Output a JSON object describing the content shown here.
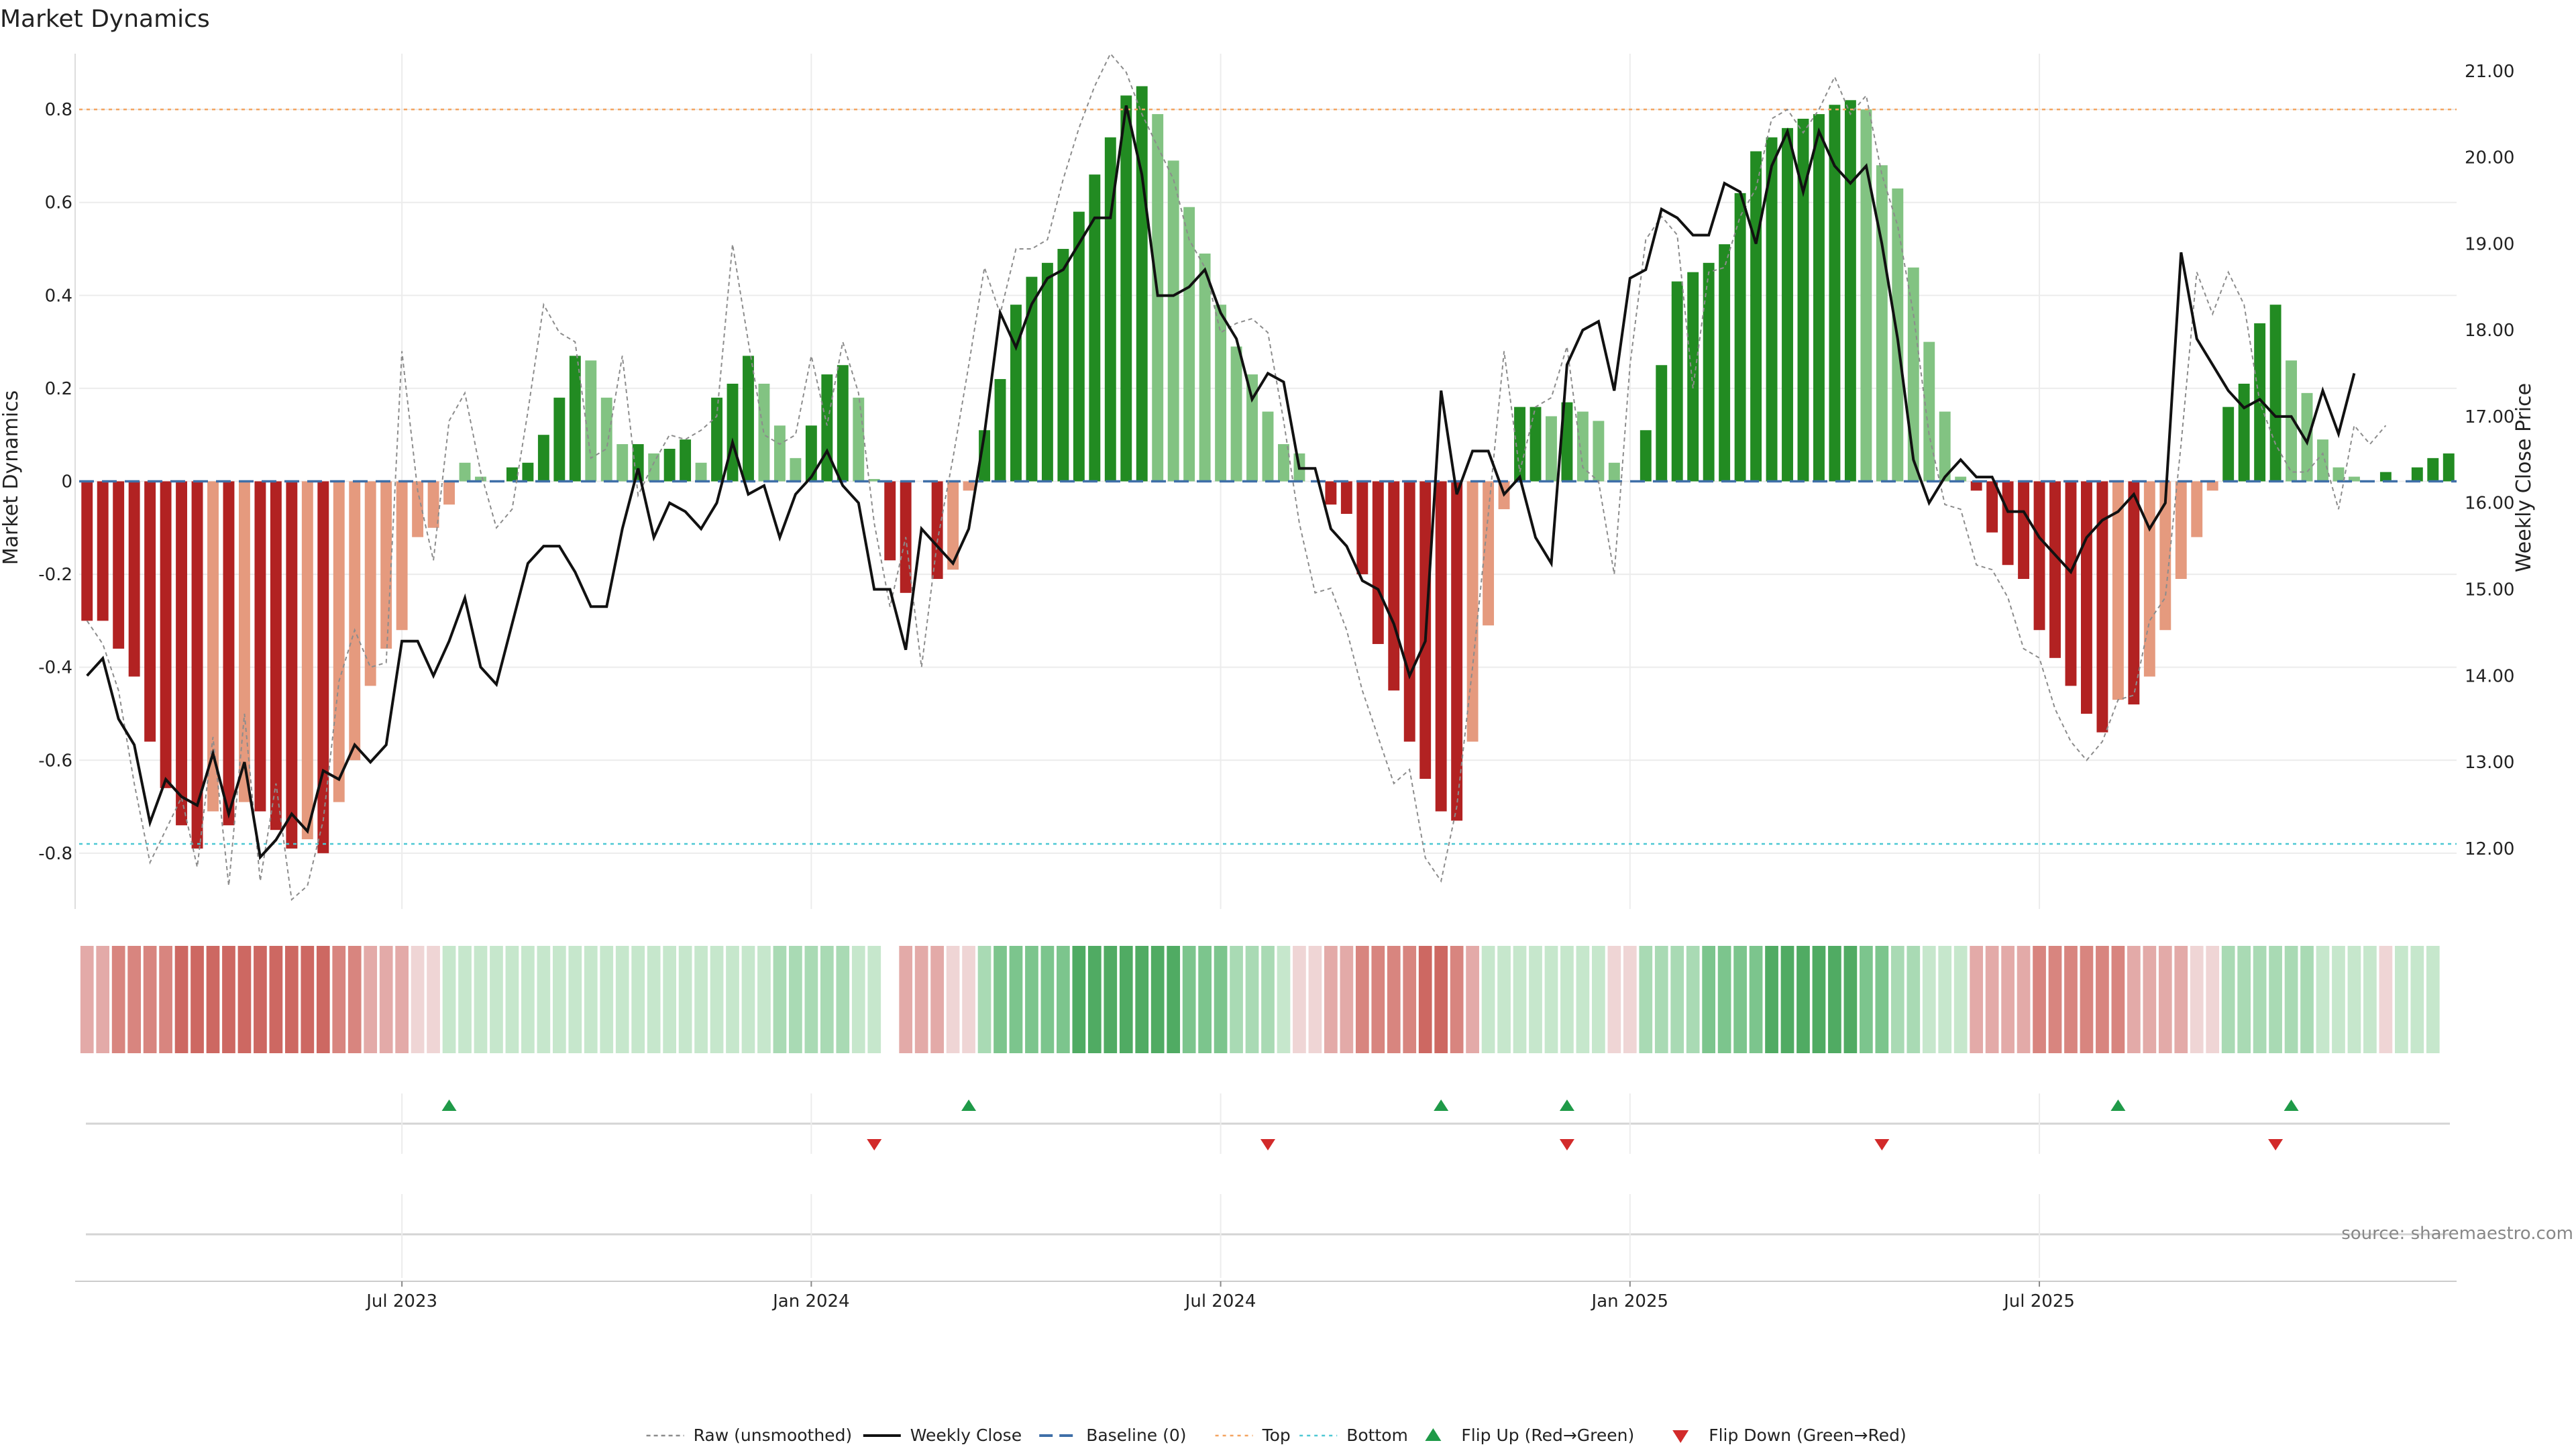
{
  "chart_data": {
    "type": "bar",
    "title": "Market Dynamics",
    "ylabel_left": "Market Dynamics",
    "ylabel_right": "Weekly Close Price",
    "source": "source: sharemaestro.com",
    "ylim_left": [
      -0.92,
      0.92
    ],
    "ylim_right": [
      11.3,
      21.2
    ],
    "y_ticks_left": [
      -0.8,
      -0.6,
      -0.4,
      -0.2,
      0,
      0.2,
      0.4,
      0.6,
      0.8
    ],
    "y_tick_labels_left": [
      "-0.8",
      "-0.6",
      "-0.4",
      "-0.2",
      "0",
      "0.2",
      "0.4",
      "0.6",
      "0.8"
    ],
    "y_ticks_right": [
      12,
      13,
      14,
      15,
      16,
      17,
      18,
      19,
      20,
      21
    ],
    "y_tick_labels_right": [
      "12.00",
      "13.00",
      "14.00",
      "15.00",
      "16.00",
      "17.00",
      "18.00",
      "19.00",
      "20.00",
      "21.00"
    ],
    "x_ticks": [
      {
        "label": "Jul 2023",
        "week": 20
      },
      {
        "label": "Jan 2024",
        "week": 46
      },
      {
        "label": "Jul 2024",
        "week": 72
      },
      {
        "label": "Jan 2025",
        "week": 98
      },
      {
        "label": "Jul 2025",
        "week": 124
      }
    ],
    "thresholds": {
      "top": 0.8,
      "bottom": -0.78,
      "baseline": 0
    },
    "market_dynamics": [
      -0.3,
      -0.3,
      -0.36,
      -0.42,
      -0.56,
      -0.66,
      -0.74,
      -0.79,
      -0.71,
      -0.74,
      -0.69,
      -0.71,
      -0.75,
      -0.79,
      -0.77,
      -0.8,
      -0.69,
      -0.6,
      -0.44,
      -0.36,
      -0.32,
      -0.12,
      -0.1,
      -0.05,
      0.04,
      0.01,
      0.0,
      0.03,
      0.04,
      0.1,
      0.18,
      0.27,
      0.26,
      0.18,
      0.08,
      0.08,
      0.06,
      0.07,
      0.09,
      0.04,
      0.18,
      0.21,
      0.27,
      0.21,
      0.12,
      0.05,
      0.12,
      0.23,
      0.25,
      0.18,
      0.005,
      -0.17,
      -0.24,
      0.0,
      -0.21,
      -0.19,
      -0.02,
      0.11,
      0.22,
      0.38,
      0.44,
      0.47,
      0.5,
      0.58,
      0.66,
      0.74,
      0.83,
      0.85,
      0.79,
      0.69,
      0.59,
      0.49,
      0.38,
      0.29,
      0.23,
      0.15,
      0.08,
      0.06,
      0.0,
      -0.05,
      -0.07,
      -0.2,
      -0.35,
      -0.45,
      -0.56,
      -0.64,
      -0.71,
      -0.73,
      -0.56,
      -0.31,
      -0.06,
      0.16,
      0.16,
      0.14,
      0.17,
      0.15,
      0.13,
      0.04,
      0.0,
      0.11,
      0.25,
      0.43,
      0.45,
      0.47,
      0.51,
      0.62,
      0.71,
      0.74,
      0.76,
      0.78,
      0.79,
      0.81,
      0.82,
      0.8,
      0.68,
      0.63,
      0.46,
      0.3,
      0.15,
      0.01,
      -0.02,
      -0.11,
      -0.18,
      -0.21,
      -0.32,
      -0.38,
      -0.44,
      -0.5,
      -0.54,
      -0.47,
      -0.48,
      -0.42,
      -0.32,
      -0.21,
      -0.12,
      -0.02,
      0.16,
      0.21,
      0.34,
      0.38,
      0.26,
      0.19,
      0.09,
      0.03,
      0.01,
      0.0,
      0.02,
      0.0,
      0.03,
      0.05,
      0.06
    ],
    "raw_unsmoothed": [
      -0.3,
      -0.35,
      -0.45,
      -0.65,
      -0.82,
      -0.75,
      -0.68,
      -0.83,
      -0.55,
      -0.87,
      -0.5,
      -0.86,
      -0.65,
      -0.9,
      -0.87,
      -0.73,
      -0.43,
      -0.32,
      -0.4,
      -0.39,
      0.28,
      -0.02,
      -0.17,
      0.13,
      0.19,
      0.02,
      -0.1,
      -0.06,
      0.15,
      0.38,
      0.32,
      0.3,
      0.05,
      0.07,
      0.27,
      -0.03,
      0.04,
      0.1,
      0.09,
      0.11,
      0.14,
      0.51,
      0.3,
      0.1,
      0.08,
      0.1,
      0.27,
      0.12,
      0.3,
      0.19,
      -0.09,
      -0.27,
      -0.12,
      -0.4,
      -0.13,
      0.05,
      0.25,
      0.46,
      0.36,
      0.5,
      0.5,
      0.52,
      0.65,
      0.76,
      0.85,
      0.92,
      0.88,
      0.79,
      0.72,
      0.65,
      0.52,
      0.46,
      0.32,
      0.34,
      0.35,
      0.32,
      0.13,
      -0.09,
      -0.24,
      -0.23,
      -0.32,
      -0.45,
      -0.55,
      -0.65,
      -0.62,
      -0.81,
      -0.86,
      -0.7,
      -0.4,
      -0.07,
      0.28,
      0.02,
      0.16,
      0.18,
      0.29,
      0.03,
      0.0,
      -0.2,
      0.25,
      0.52,
      0.57,
      0.53,
      0.2,
      0.45,
      0.46,
      0.57,
      0.63,
      0.78,
      0.8,
      0.75,
      0.8,
      0.87,
      0.79,
      0.83,
      0.66,
      0.55,
      0.36,
      0.1,
      -0.05,
      -0.06,
      -0.18,
      -0.19,
      -0.25,
      -0.36,
      -0.38,
      -0.49,
      -0.56,
      -0.6,
      -0.56,
      -0.47,
      -0.46,
      -0.3,
      -0.25,
      0.08,
      0.45,
      0.36,
      0.45,
      0.38,
      0.17,
      0.08,
      0.02,
      0.02,
      0.06,
      -0.06,
      0.12,
      0.08,
      0.12
    ],
    "weekly_close": [
      14.0,
      14.2,
      13.5,
      13.2,
      12.3,
      12.8,
      12.6,
      12.5,
      13.1,
      12.4,
      13.0,
      11.9,
      12.1,
      12.4,
      12.2,
      12.9,
      12.8,
      13.2,
      13.0,
      13.2,
      14.4,
      14.4,
      14.0,
      14.4,
      14.9,
      14.1,
      13.9,
      14.6,
      15.3,
      15.5,
      15.5,
      15.2,
      14.8,
      14.8,
      15.7,
      16.4,
      15.6,
      16.0,
      15.9,
      15.7,
      16.0,
      16.7,
      16.1,
      16.2,
      15.6,
      16.1,
      16.3,
      16.6,
      16.2,
      16.0,
      15.0,
      15.0,
      14.3,
      15.7,
      15.5,
      15.3,
      15.7,
      16.8,
      18.2,
      17.8,
      18.3,
      18.6,
      18.7,
      19.0,
      19.3,
      19.3,
      20.6,
      19.8,
      18.4,
      18.4,
      18.5,
      18.7,
      18.2,
      17.9,
      17.2,
      17.5,
      17.4,
      16.4,
      16.4,
      15.7,
      15.5,
      15.1,
      15.0,
      14.6,
      14.0,
      14.4,
      17.3,
      16.1,
      16.6,
      16.6,
      16.1,
      16.3,
      15.6,
      15.3,
      17.6,
      18.0,
      18.1,
      17.3,
      18.6,
      18.7,
      19.4,
      19.3,
      19.1,
      19.1,
      19.7,
      19.6,
      19.0,
      19.9,
      20.3,
      19.6,
      20.3,
      19.9,
      19.7,
      19.9,
      19.0,
      17.9,
      16.5,
      16.0,
      16.3,
      16.5,
      16.3,
      16.3,
      15.9,
      15.9,
      15.6,
      15.4,
      15.2,
      15.6,
      15.8,
      15.9,
      16.1,
      15.7,
      16.0,
      18.9,
      17.9,
      17.6,
      17.3,
      17.1,
      17.2,
      17.0,
      17.0,
      16.7,
      17.3,
      16.8,
      17.5
    ],
    "status_strip": [
      "r2",
      "r2",
      "r3",
      "r3",
      "r3",
      "r3",
      "r4",
      "r4",
      "r4",
      "r4",
      "r4",
      "r4",
      "r4",
      "r4",
      "r4",
      "r4",
      "r3",
      "r3",
      "r2",
      "r2",
      "r2",
      "r1",
      "r1",
      "g1",
      "g1",
      "g1",
      "g1",
      "g1",
      "g1",
      "g1",
      "g1",
      "g1",
      "g1",
      "g1",
      "g1",
      "g1",
      "g1",
      "g1",
      "g1",
      "g1",
      "g1",
      "g1",
      "g1",
      "g1",
      "g2",
      "g2",
      "g2",
      "g2",
      "g2",
      "g1",
      "g1",
      "gap",
      "r2",
      "r2",
      "r2",
      "r1",
      "r1",
      "g2",
      "g3",
      "g3",
      "g3",
      "g3",
      "g3",
      "g4",
      "g4",
      "g4",
      "g4",
      "g4",
      "g4",
      "g4",
      "g3",
      "g3",
      "g3",
      "g2",
      "g2",
      "g2",
      "g1",
      "r1",
      "r1",
      "r2",
      "r2",
      "r3",
      "r3",
      "r3",
      "r3",
      "r4",
      "r4",
      "r3",
      "r2",
      "g1",
      "g1",
      "g1",
      "g1",
      "g1",
      "g1",
      "g1",
      "g1",
      "r1",
      "r1",
      "g2",
      "g2",
      "g2",
      "g2",
      "g3",
      "g3",
      "g3",
      "g3",
      "g4",
      "g4",
      "g4",
      "g4",
      "g4",
      "g4",
      "g3",
      "g3",
      "g2",
      "g2",
      "g1",
      "g1",
      "g1",
      "r2",
      "r2",
      "r2",
      "r2",
      "r3",
      "r3",
      "r3",
      "r3",
      "r3",
      "r3",
      "r2",
      "r2",
      "r2",
      "r2",
      "r1",
      "r1",
      "g2",
      "g2",
      "g2",
      "g2",
      "g2",
      "g2",
      "g1",
      "g1",
      "g1",
      "g1",
      "r1",
      "g1",
      "g1",
      "g1"
    ],
    "flip_up_weeks": [
      23,
      56,
      86,
      94,
      129,
      140
    ],
    "flip_down_weeks": [
      50,
      75,
      94,
      114,
      139
    ],
    "colors": {
      "bar_red_strong": "#b22222",
      "bar_red_light": "#e59a7e",
      "bar_green_strong": "#228b22",
      "bar_green_light": "#82c382",
      "weekly_close": "#111111",
      "raw_line": "#8c8c8c",
      "top_line": "#f4a460",
      "bottom_line": "#4dc8d4",
      "baseline": "#3f6fa8",
      "flip_up": "#1f9a48",
      "flip_down": "#d22a2a",
      "strip": {
        "r1": "#efd5d5",
        "r2": "#e3aaa8",
        "r3": "#d8857f",
        "r4": "#cd6862",
        "g1": "#c6e7cc",
        "g2": "#a9dab4",
        "g3": "#7cc58d",
        "g4": "#50ab63"
      }
    },
    "legend": [
      {
        "label": "Raw (unsmoothed)",
        "kind": "raw"
      },
      {
        "label": "Weekly Close",
        "kind": "close"
      },
      {
        "label": "Baseline (0)",
        "kind": "baseline"
      },
      {
        "label": "Top",
        "kind": "top"
      },
      {
        "label": "Bottom",
        "kind": "bottom"
      },
      {
        "label": "Flip Up (Red→Green)",
        "kind": "up"
      },
      {
        "label": "Flip Down (Green→Red)",
        "kind": "down"
      }
    ]
  }
}
